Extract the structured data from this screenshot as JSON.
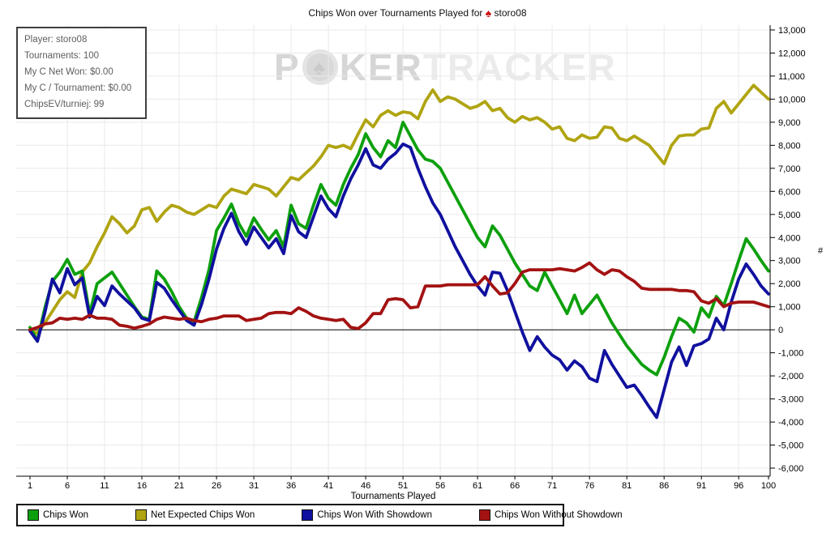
{
  "title": {
    "prefix": "Chips Won over Tournaments Played for",
    "icon": "spade",
    "player": "storo08"
  },
  "info_box": {
    "lines": [
      "Player: storo08",
      "Tournaments: 100",
      "My C Net Won: $0.00",
      "My C / Tournament: $0.00",
      "ChipsEV/turniej: 99"
    ]
  },
  "watermark": {
    "part1": "P",
    "chip_icon": "spade-chip",
    "part2": "KER",
    "part3": "TRACKER"
  },
  "legend": {
    "items": [
      {
        "label": "Chips Won",
        "color": "#0da00d"
      },
      {
        "label": "Net Expected Chips Won",
        "color": "#b0a411"
      },
      {
        "label": "Chips Won With Showdown",
        "color": "#10109f"
      },
      {
        "label": "Chips Won Without Showdown",
        "color": "#a31212"
      }
    ]
  },
  "chart_data": {
    "type": "line",
    "title": "Chips Won over Tournaments Played for storo08",
    "xlabel": "Tournaments Played",
    "ylabel": "#",
    "x_min": 1,
    "x_max": 100,
    "x_ticks": [
      1,
      6,
      11,
      16,
      21,
      26,
      31,
      36,
      41,
      46,
      51,
      56,
      61,
      66,
      71,
      76,
      81,
      86,
      91,
      96,
      100
    ],
    "y_min": -6000,
    "y_max": 13000,
    "y_step": 1000,
    "grid": true,
    "zero_line": true,
    "legend_position": "bottom",
    "series": [
      {
        "name": "Net Expected Chips Won",
        "color": "#b0a411",
        "values": [
          0,
          -150,
          300,
          800,
          1300,
          1650,
          1400,
          2500,
          2900,
          3600,
          4200,
          4900,
          4600,
          4200,
          4500,
          5200,
          5300,
          4700,
          5100,
          5400,
          5300,
          5100,
          5000,
          5200,
          5400,
          5300,
          5800,
          6100,
          6000,
          5900,
          6300,
          6200,
          6100,
          5800,
          6200,
          6600,
          6500,
          6800,
          7100,
          7500,
          8000,
          7900,
          8000,
          7850,
          8500,
          9100,
          8800,
          9300,
          9500,
          9300,
          9450,
          9400,
          9150,
          9900,
          10400,
          9900,
          10100,
          10000,
          9800,
          9600,
          9700,
          9900,
          9500,
          9600,
          9200,
          9000,
          9250,
          9100,
          9200,
          9000,
          8700,
          8800,
          8300,
          8200,
          8450,
          8300,
          8350,
          8800,
          8750,
          8300,
          8200,
          8400,
          8200,
          8000,
          7600,
          7200,
          8000,
          8400,
          8450,
          8450,
          8700,
          8750,
          9600,
          9900,
          9400,
          9800,
          10200,
          10600,
          10300,
          10000
        ]
      },
      {
        "name": "Chips Won",
        "color": "#0da00d",
        "values": [
          100,
          -450,
          950,
          2100,
          2500,
          3050,
          2400,
          2550,
          700,
          2000,
          2250,
          2500,
          2000,
          1500,
          1000,
          550,
          450,
          2550,
          2200,
          1650,
          1000,
          500,
          350,
          1400,
          2600,
          4300,
          4850,
          5450,
          4600,
          4050,
          4850,
          4350,
          3900,
          4300,
          3600,
          5400,
          4600,
          4400,
          5400,
          6300,
          5700,
          5400,
          6300,
          7000,
          7600,
          8500,
          7900,
          7500,
          8200,
          7900,
          9000,
          8400,
          7800,
          7400,
          7300,
          7000,
          6400,
          5800,
          5200,
          4600,
          4000,
          3600,
          4500,
          4100,
          3500,
          2900,
          2400,
          1900,
          1700,
          2500,
          1900,
          1300,
          700,
          1500,
          700,
          1100,
          1500,
          900,
          300,
          -200,
          -700,
          -1100,
          -1500,
          -1750,
          -1950,
          -1200,
          -300,
          500,
          300,
          -100,
          950,
          550,
          1450,
          1050,
          2000,
          3000,
          3950,
          3500,
          3000,
          2550
        ]
      },
      {
        "name": "Chips Won With Showdown",
        "color": "#10109f",
        "values": [
          -50,
          -500,
          750,
          2200,
          1600,
          2650,
          1950,
          2250,
          550,
          1450,
          1050,
          1900,
          1550,
          1250,
          950,
          500,
          400,
          2050,
          1800,
          1300,
          850,
          400,
          200,
          1100,
          2200,
          3500,
          4400,
          5050,
          4250,
          3700,
          4450,
          4000,
          3550,
          3950,
          3300,
          4950,
          4250,
          4000,
          4900,
          5800,
          5250,
          4900,
          5800,
          6550,
          7150,
          7850,
          7150,
          7000,
          7400,
          7650,
          8050,
          7900,
          7000,
          6200,
          5500,
          5000,
          4300,
          3600,
          3000,
          2400,
          1900,
          1500,
          2500,
          2450,
          1700,
          800,
          -100,
          -900,
          -300,
          -750,
          -1100,
          -1300,
          -1750,
          -1350,
          -1600,
          -2100,
          -2250,
          -900,
          -1500,
          -2000,
          -2500,
          -2400,
          -2850,
          -3350,
          -3800,
          -2600,
          -1400,
          -750,
          -1550,
          -700,
          -600,
          -400,
          500,
          0,
          1200,
          2200,
          2850,
          2400,
          1900,
          1550
        ]
      },
      {
        "name": "Chips Won Without Showdown",
        "color": "#a31212",
        "values": [
          0,
          100,
          250,
          300,
          500,
          450,
          500,
          450,
          630,
          500,
          500,
          450,
          200,
          150,
          70,
          150,
          250,
          450,
          550,
          500,
          450,
          500,
          400,
          350,
          450,
          500,
          600,
          600,
          600,
          400,
          450,
          500,
          700,
          750,
          750,
          700,
          950,
          800,
          600,
          500,
          450,
          400,
          450,
          100,
          50,
          300,
          700,
          700,
          1300,
          1350,
          1300,
          950,
          1000,
          1900,
          1900,
          1900,
          1950,
          1950,
          1950,
          1950,
          1950,
          2300,
          1900,
          1550,
          1600,
          2000,
          2500,
          2600,
          2600,
          2600,
          2600,
          2650,
          2600,
          2550,
          2700,
          2900,
          2600,
          2400,
          2600,
          2550,
          2300,
          2100,
          1800,
          1750,
          1750,
          1750,
          1750,
          1700,
          1700,
          1650,
          1250,
          1150,
          1350,
          1000,
          1150,
          1200,
          1200,
          1200,
          1100,
          1000
        ]
      }
    ]
  },
  "style": {
    "grid_color": "#e9e9e9",
    "axis_color": "#000000",
    "tick_label_color": "#000000",
    "background": "#ffffff"
  }
}
